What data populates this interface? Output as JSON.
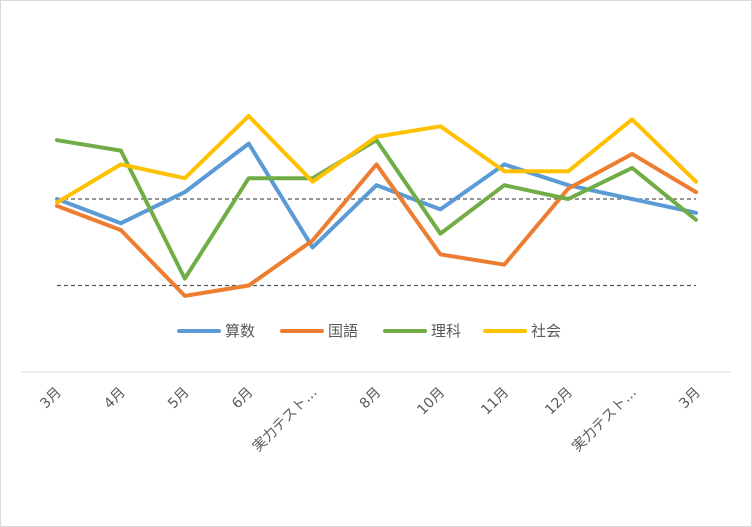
{
  "chart_data": {
    "type": "line",
    "title": "",
    "xlabel": "",
    "ylabel": "",
    "categories": [
      "3月",
      "4月",
      "5月",
      "6月",
      "実力テスト…",
      "8月",
      "10月",
      "11月",
      "12月",
      "実力テスト…",
      "3月"
    ],
    "ylim": [
      0,
      100
    ],
    "reference_lines": [
      50,
      25
    ],
    "grid": false,
    "legend": "bottom",
    "series": [
      {
        "name": "算数",
        "color": "#5b9bd5",
        "values": [
          50,
          43,
          52,
          66,
          36,
          54,
          47,
          60,
          54,
          50,
          46
        ]
      },
      {
        "name": "国語",
        "color": "#ed7d31",
        "values": [
          48,
          41,
          22,
          25,
          38,
          60,
          34,
          31,
          53,
          63,
          52
        ]
      },
      {
        "name": "理科",
        "color": "#70ad47",
        "values": [
          67,
          64,
          27,
          56,
          56,
          67,
          40,
          54,
          50,
          59,
          44
        ]
      },
      {
        "name": "社会",
        "color": "#ffc000",
        "values": [
          49,
          60,
          56,
          74,
          55,
          68,
          71,
          58,
          58,
          73,
          55
        ]
      }
    ]
  }
}
